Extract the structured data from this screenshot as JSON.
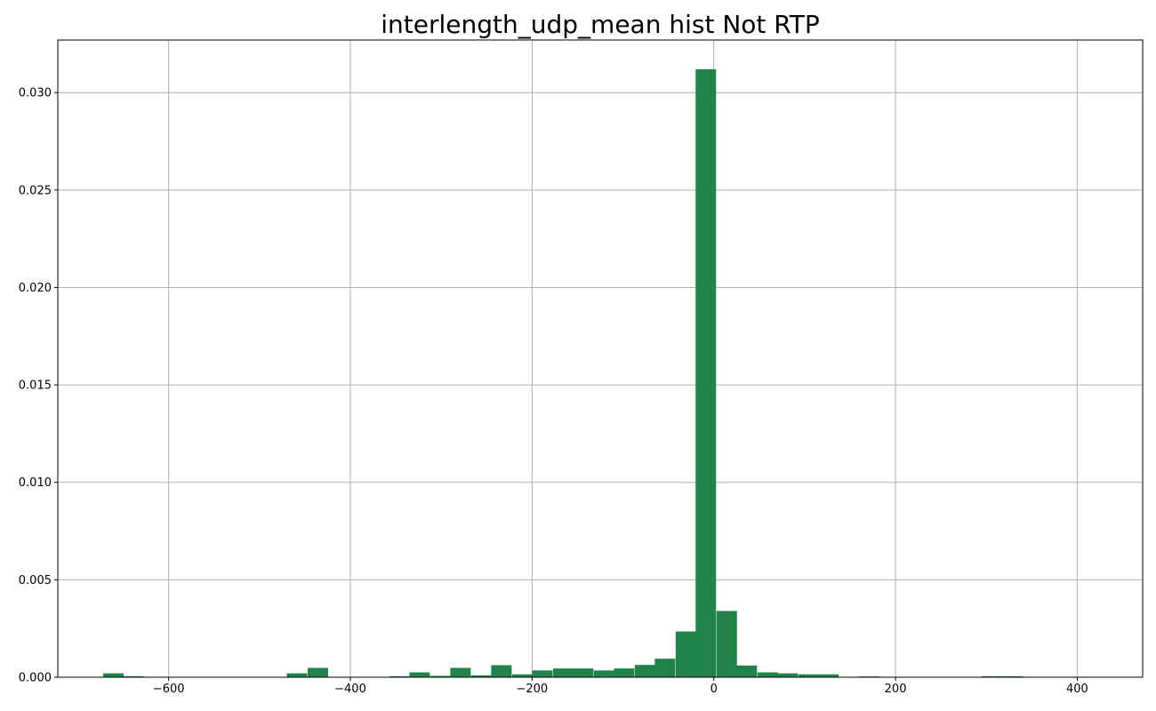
{
  "chart_data": {
    "type": "bar",
    "title": "interlength_udp_mean hist Not RTP",
    "xlabel": "",
    "ylabel": "",
    "xlim": [
      -722,
      472
    ],
    "ylim": [
      0,
      0.0327
    ],
    "grid": true,
    "bar_color": "#20844a",
    "bin_width": 22.5,
    "x_ticks": [
      -600,
      -400,
      -200,
      0,
      200,
      400
    ],
    "x_tick_labels": [
      "−600",
      "−400",
      "−200",
      "0",
      "200",
      "400"
    ],
    "y_ticks": [
      0.0,
      0.005,
      0.01,
      0.015,
      0.02,
      0.025,
      0.03
    ],
    "y_tick_labels": [
      "0.000",
      "0.005",
      "0.010",
      "0.015",
      "0.020",
      "0.025",
      "0.030"
    ],
    "bins": [
      {
        "x": -672,
        "value": 0.0002
      },
      {
        "x": -650,
        "value": 5e-05
      },
      {
        "x": -470,
        "value": 0.0002
      },
      {
        "x": -447,
        "value": 0.00048
      },
      {
        "x": -357,
        "value": 5e-05
      },
      {
        "x": -335,
        "value": 0.00025
      },
      {
        "x": -312,
        "value": 7e-05
      },
      {
        "x": -290,
        "value": 0.00048
      },
      {
        "x": -267,
        "value": 0.0001
      },
      {
        "x": -245,
        "value": 0.00062
      },
      {
        "x": -222,
        "value": 0.00015
      },
      {
        "x": -200,
        "value": 0.00035
      },
      {
        "x": -177,
        "value": 0.00045
      },
      {
        "x": -155,
        "value": 0.00045
      },
      {
        "x": -132,
        "value": 0.00035
      },
      {
        "x": -110,
        "value": 0.00045
      },
      {
        "x": -87,
        "value": 0.00063
      },
      {
        "x": -65,
        "value": 0.00095
      },
      {
        "x": -42,
        "value": 0.00235
      },
      {
        "x": -20,
        "value": 0.0312
      },
      {
        "x": 3,
        "value": 0.0034
      },
      {
        "x": 25,
        "value": 0.0006
      },
      {
        "x": 48,
        "value": 0.00025
      },
      {
        "x": 70,
        "value": 0.0002
      },
      {
        "x": 93,
        "value": 0.00015
      },
      {
        "x": 115,
        "value": 0.00015
      },
      {
        "x": 160,
        "value": 4e-05
      },
      {
        "x": 295,
        "value": 5e-05
      },
      {
        "x": 318,
        "value": 5e-05
      }
    ]
  }
}
